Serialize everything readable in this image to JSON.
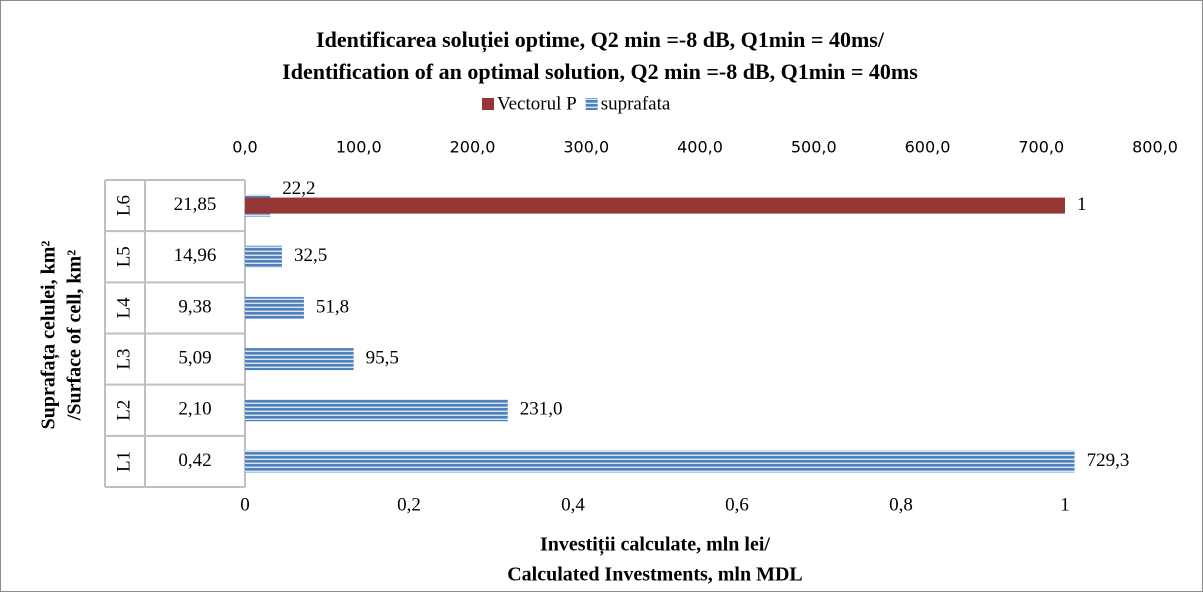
{
  "chart_data": {
    "type": "bar",
    "orientation": "horizontal",
    "title": [
      "Identificarea soluției optime, Q2 min =-8 dB, Q1min = 40ms/",
      "Identification of an optimal solution, Q2 min =-8 dB, Q1min = 40ms"
    ],
    "x_label": [
      "Investiții calculate, mln lei/",
      "Calculated Investments, mln MDL"
    ],
    "y_label": [
      "Suprafața celulei, km²",
      "/Surface of cell, km²"
    ],
    "categories": [
      "L1",
      "L2",
      "L3",
      "L4",
      "L5",
      "L6"
    ],
    "subcategories": [
      "0,42",
      "2,10",
      "5,09",
      "9,38",
      "14,96",
      "21,85"
    ],
    "series": [
      {
        "name": "Vectorul P",
        "color": "#953735",
        "axis": "x",
        "values": [
          null,
          null,
          null,
          null,
          null,
          1
        ]
      },
      {
        "name": "suprafata",
        "color": "#4f81bd",
        "axis": "x2",
        "values": [
          729.3,
          231.0,
          95.5,
          51.8,
          32.5,
          22.2
        ],
        "value_labels": [
          "729,3",
          "231,0",
          "95,5",
          "51,8",
          "32,5",
          "22,2"
        ]
      }
    ],
    "xlim": [
      0,
      1
    ],
    "xticks": [
      0,
      {
        "value": 0.2,
        "label": "0,2"
      },
      {
        "value": 0.4,
        "label": "0,4"
      },
      {
        "value": 0.6,
        "label": "0,6"
      },
      {
        "value": 0.8,
        "label": "0,8"
      },
      1
    ],
    "x2lim": [
      0,
      800
    ],
    "x2ticks": [
      {
        "value": 0,
        "label": "0,0"
      },
      {
        "value": 100,
        "label": "100,0"
      },
      {
        "value": 200,
        "label": "200,0"
      },
      {
        "value": 300,
        "label": "300,0"
      },
      {
        "value": 400,
        "label": "400,0"
      },
      {
        "value": 500,
        "label": "500,0"
      },
      {
        "value": 600,
        "label": "600,0"
      },
      {
        "value": 700,
        "label": "700,0"
      },
      {
        "value": 800,
        "label": "800,0"
      }
    ],
    "legend": "top",
    "grid": false
  }
}
